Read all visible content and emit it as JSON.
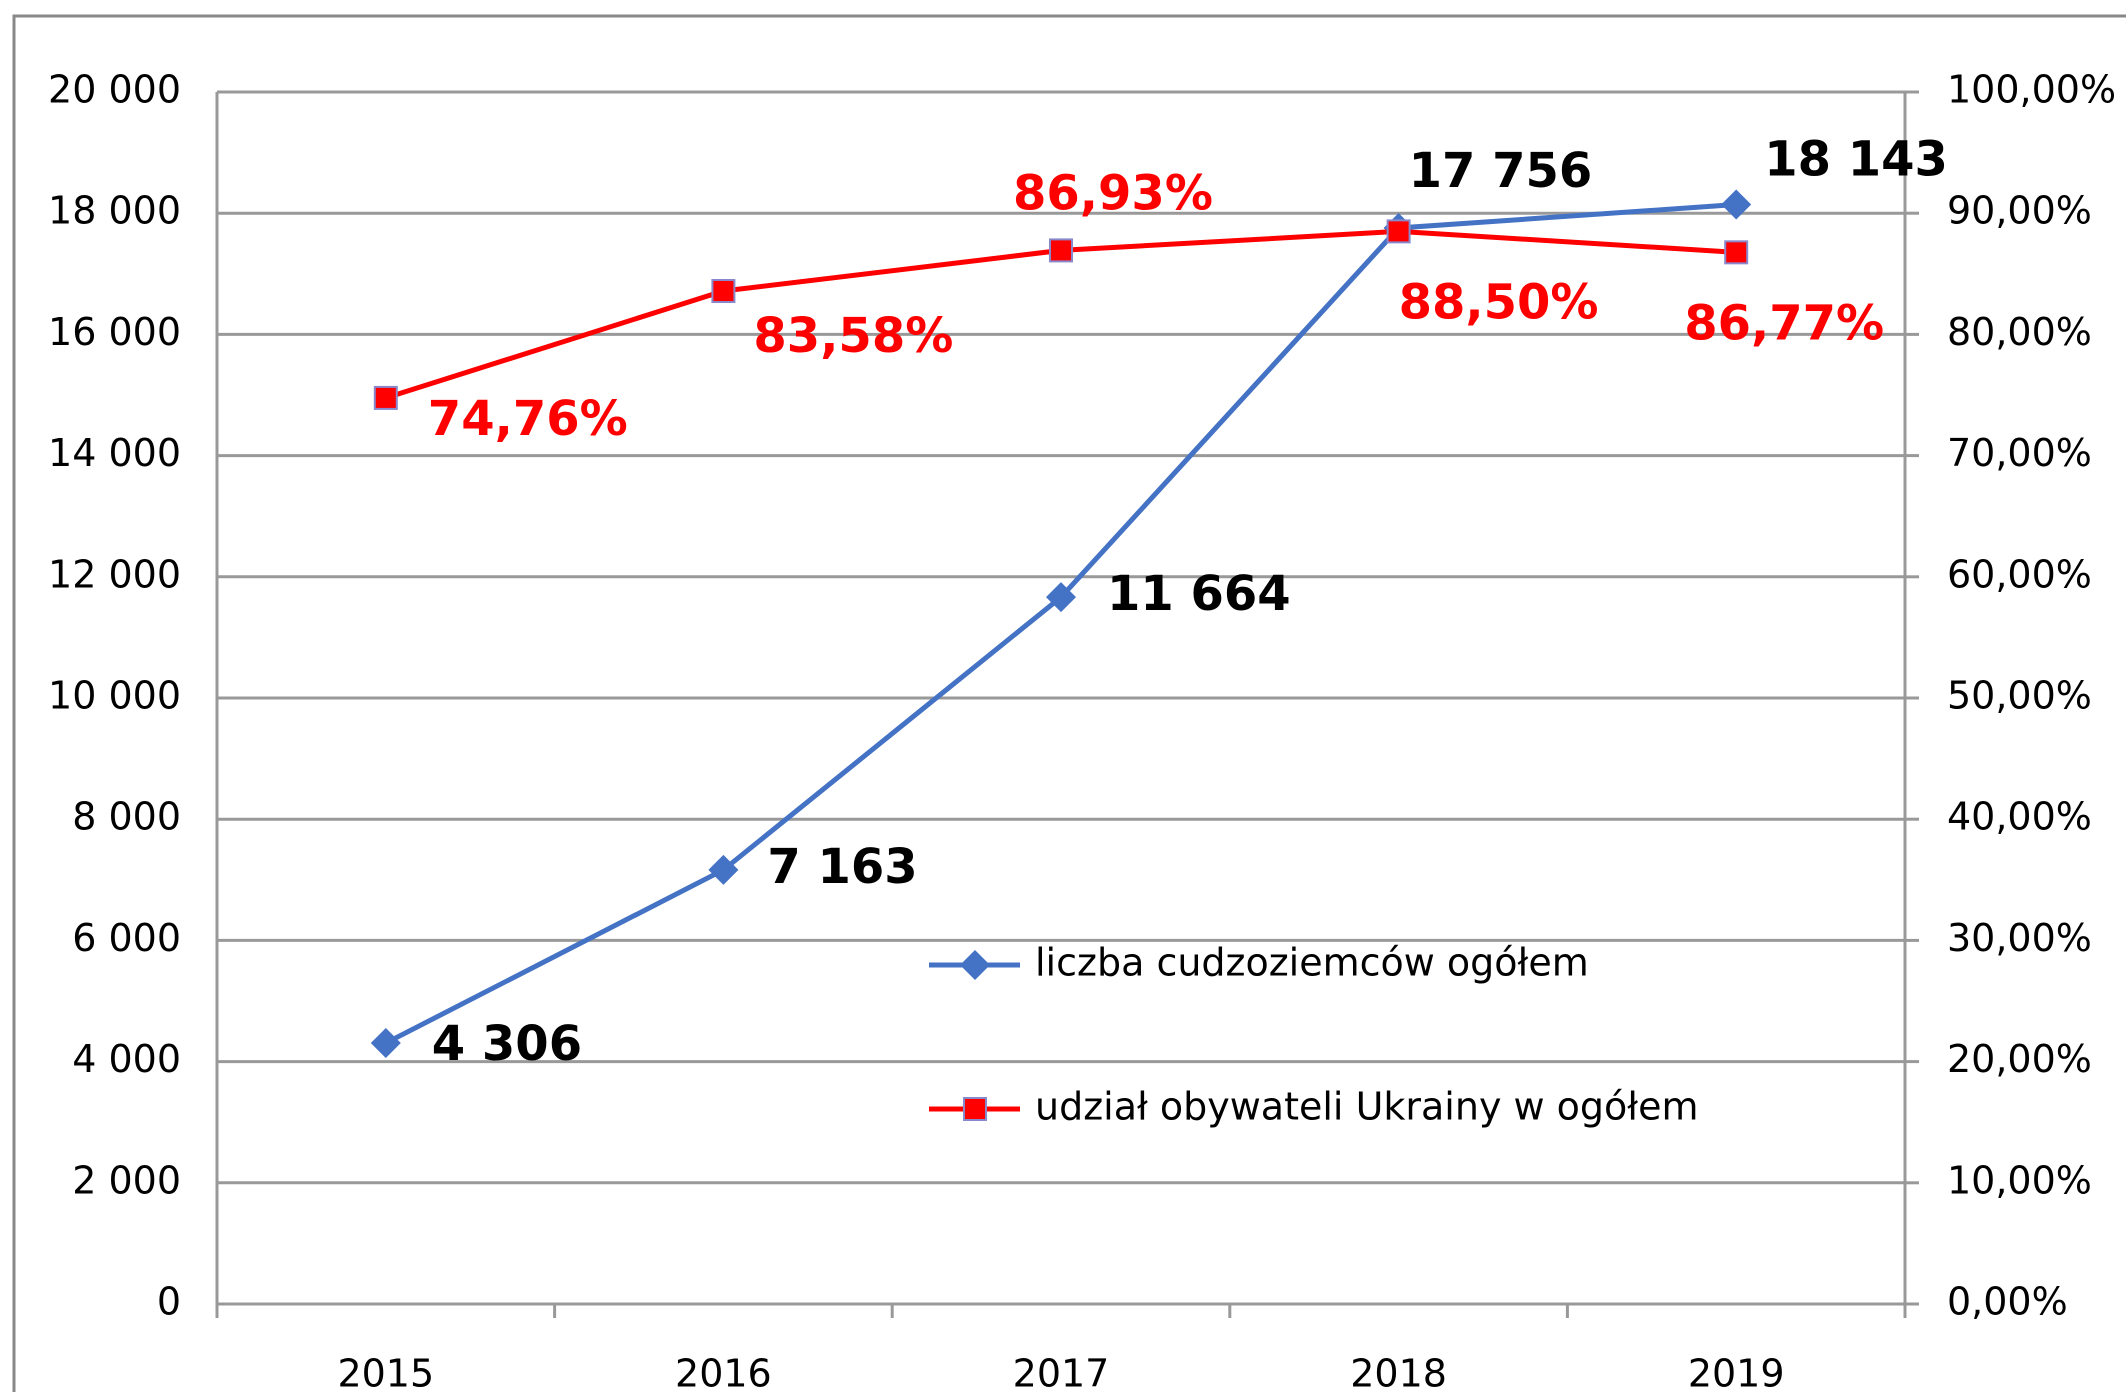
{
  "chart_data": {
    "type": "line",
    "categories": [
      "2015",
      "2016",
      "2017",
      "2018",
      "2019"
    ],
    "series": [
      {
        "name": "liczba cudzoziemców ogółem",
        "color": "#4472c4",
        "values": [
          4306,
          7163,
          11664,
          17756,
          18143
        ],
        "value_labels": [
          "4 306",
          "7 163",
          "11 664",
          "17 756",
          "18 143"
        ]
      },
      {
        "name": "udział obywateli Ukrainy w ogółem",
        "color": "#ff0000",
        "axis": "y2",
        "values": [
          74.76,
          83.58,
          86.93,
          88.5,
          86.77
        ],
        "value_labels": [
          "74,76%",
          "83,58%",
          "86,93%",
          "88,50%",
          "86,77%"
        ]
      }
    ],
    "ylim": [
      0,
      20000
    ],
    "yticks": [
      0,
      {
        "value": 2000,
        "label": "2 000"
      },
      {
        "value": 4000,
        "label": "4 000"
      },
      {
        "value": 6000,
        "label": "6 000"
      },
      {
        "value": 8000,
        "label": "8 000"
      },
      {
        "value": 10000,
        "label": "10 000"
      },
      {
        "value": 12000,
        "label": "12 000"
      },
      {
        "value": 14000,
        "label": "14 000"
      },
      {
        "value": 16000,
        "label": "16 000"
      },
      {
        "value": 18000,
        "label": "18 000"
      },
      {
        "value": 20000,
        "label": "20 000"
      }
    ],
    "y2lim": [
      0,
      100
    ],
    "y2ticks": [
      {
        "value": 0,
        "label": "0,00%"
      },
      {
        "value": 10,
        "label": "10,00%"
      },
      {
        "value": 20,
        "label": "20,00%"
      },
      {
        "value": 30,
        "label": "30,00%"
      },
      {
        "value": 40,
        "label": "40,00%"
      },
      {
        "value": 50,
        "label": "50,00%"
      },
      {
        "value": 60,
        "label": "60,00%"
      },
      {
        "value": 70,
        "label": "70,00%"
      },
      {
        "value": 80,
        "label": "80,00%"
      },
      {
        "value": 90,
        "label": "90,00%"
      },
      {
        "value": 100,
        "label": "100,00%"
      }
    ],
    "grid": true
  }
}
